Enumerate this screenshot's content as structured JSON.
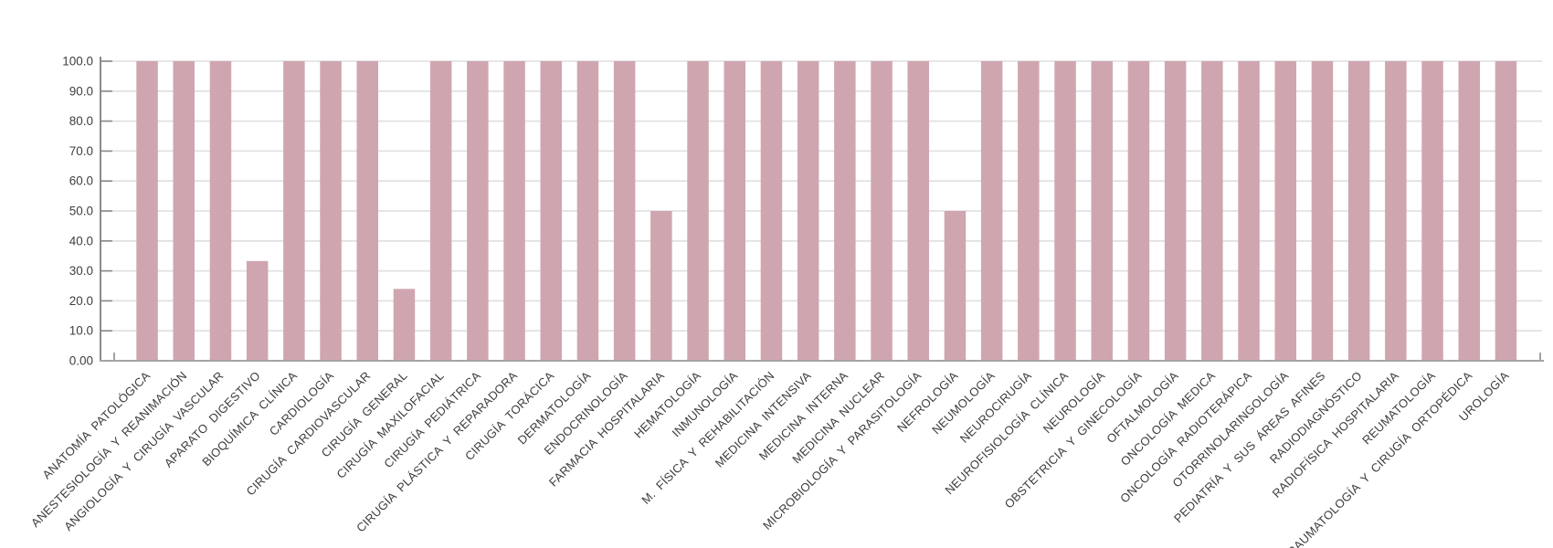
{
  "chart_data": {
    "type": "bar",
    "title": "",
    "xlabel": "",
    "ylabel": "",
    "ylim": [
      0,
      100
    ],
    "grid": true,
    "legend": null,
    "categories": [
      "ANATOMÍA PATOLÓGICA",
      "ANESTESIOLOGÍA Y REANIMACIÓN",
      "ANGIOLOGÍA Y CIRUGÍA VASCULAR",
      "APARATO DIGESTIVO",
      "BIOQUÍMICA CLÍNICA",
      "CARDIOLOGÍA",
      "CIRUGÍA CARDIOVASCULAR",
      "CIRUGÍA GENERAL",
      "CIRUGÍA MAXILOFACIAL",
      "CIRUGÍA PEDIÁTRICA",
      "CIRUGÍA PLÁSTICA Y REPARADORA",
      "CIRUGÍA TORÁCICA",
      "DERMATOLOGÍA",
      "ENDOCRINOLOGÍA",
      "FARMACIA HOSPITALARIA",
      "HEMATOLOGÍA",
      "INMUNOLOGÍA",
      "M. FÍSICA Y REHABILITACIÓN",
      "MEDICINA INTENSIVA",
      "MEDICINA INTERNA",
      "MEDICINA NUCLEAR",
      "MICROBIOLOGÍA Y PARASITOLOGÍA",
      "NEFROLOGÍA",
      "NEUMOLOGÍA",
      "NEUROCIRUGÍA",
      "NEUROFISIOLOGÍA CLÍNICA",
      "NEUROLOGÍA",
      "OBSTETRICIA Y GINECOLOGÍA",
      "OFTALMOLOGÍA",
      "ONCOLOGÍA MEDICA",
      "ONCOLOGÍA RADIOTERÁPICA",
      "OTORRINOLARINGOLOGÍA",
      "PEDIATRÍA Y SUS ÁREAS AFINES",
      "RADIODIAGNÓSTICO",
      "RADIOFÍSICA HOSPITALARIA",
      "REUMATOLOGÍA",
      "TRAUMATOLOGÍA Y CIRUGÍA ORTOPÉDICA",
      "UROLOGÍA"
    ],
    "values": [
      100,
      100,
      100,
      33.3,
      100,
      100,
      100,
      24,
      100,
      100,
      100,
      100,
      100,
      100,
      50,
      100,
      100,
      100,
      100,
      100,
      100,
      100,
      50,
      100,
      100,
      100,
      100,
      100,
      100,
      100,
      100,
      100,
      100,
      100,
      100,
      100,
      100,
      100
    ],
    "y_tick_labels": [
      "0.00",
      "10.0",
      "20.0",
      "30.0",
      "40.0",
      "50.0",
      "60.0",
      "70.0",
      "80.0",
      "90.0",
      "100.0"
    ],
    "colors": {
      "bar_fill": "#cfa6b0",
      "gridline": "#e2e2e2",
      "value_axis": "#8a8a8a",
      "category_axis": "#a3a3a3",
      "tick": "#8a8a8a",
      "label_text": "#3d3d3d"
    }
  }
}
